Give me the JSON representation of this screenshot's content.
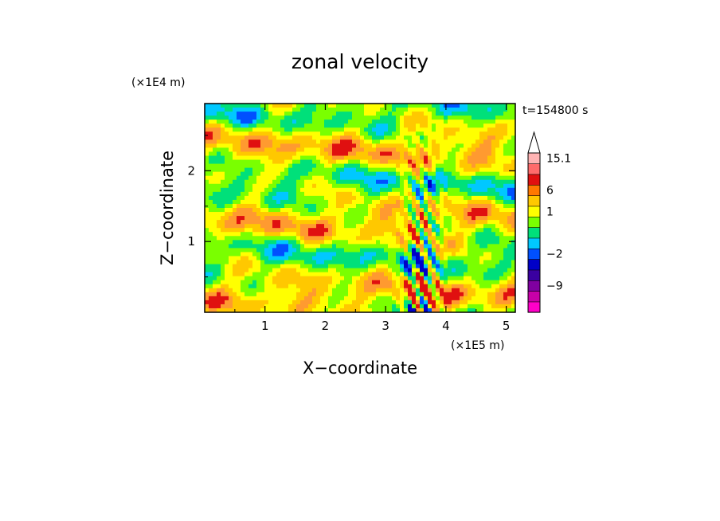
{
  "chart_data": {
    "type": "heatmap",
    "title": "zonal velocity",
    "xlabel": "X−coordinate",
    "ylabel": "Z−coordinate",
    "x_unit": "(×1E5 m)",
    "y_unit": "(×1E4 m)",
    "time_label": "t=154800 s",
    "xlim": [
      0,
      5.15
    ],
    "ylim": [
      0,
      2.95
    ],
    "x_ticks": [
      {
        "value": 1,
        "label": "1"
      },
      {
        "value": 2,
        "label": "2"
      },
      {
        "value": 3,
        "label": "3"
      },
      {
        "value": 4,
        "label": "4"
      },
      {
        "value": 5,
        "label": "5"
      }
    ],
    "y_ticks": [
      {
        "value": 1,
        "label": "1"
      },
      {
        "value": 2,
        "label": "2"
      }
    ],
    "colorbar": {
      "levels": [
        {
          "color": "#ff00c8"
        },
        {
          "color": "#c800a8"
        },
        {
          "color": "#8000a0",
          "label": "−9"
        },
        {
          "color": "#3a00a0"
        },
        {
          "color": "#0000c8"
        },
        {
          "color": "#0050ff",
          "label": "−2"
        },
        {
          "color": "#00c8ff"
        },
        {
          "color": "#00e07a"
        },
        {
          "color": "#7aff00"
        },
        {
          "color": "#ffff00",
          "label": "1"
        },
        {
          "color": "#ffc800"
        },
        {
          "color": "#ff7800",
          "label": "6"
        },
        {
          "color": "#e01010"
        },
        {
          "color": "#ff6b6b"
        },
        {
          "color": "#ffb4b4",
          "label": "15.1"
        }
      ],
      "arrow": "top"
    },
    "field_palette": [
      "#0000c8",
      "#0050ff",
      "#00c8ff",
      "#00e07a",
      "#7aff00",
      "#ffff00",
      "#ffc800",
      "#ff9a30",
      "#e01010"
    ]
  }
}
